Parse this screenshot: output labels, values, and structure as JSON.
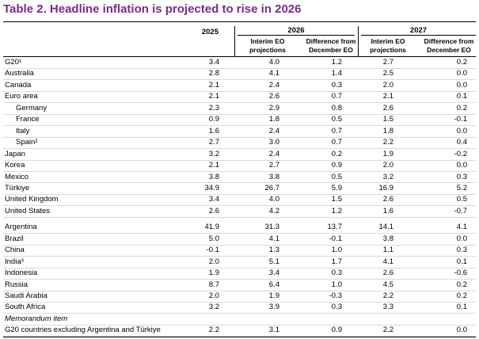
{
  "title": "Table  2. Headline inflation is projected to rise in 2026",
  "header": {
    "years": [
      "2025",
      "2026",
      "2027"
    ],
    "subheaders": [
      "Interim EO projections",
      "Difference from December EO",
      "Interim EO projections",
      "Difference from December EO"
    ]
  },
  "groups": [
    {
      "rows": [
        {
          "label": "G20¹",
          "values": [
            "3.4",
            "4.0",
            "1.2",
            "2.7",
            "0.2"
          ]
        },
        {
          "label": "Australia",
          "values": [
            "2.8",
            "4.1",
            "1.4",
            "2.5",
            "0.0"
          ]
        },
        {
          "label": "Canada",
          "values": [
            "2.1",
            "2.4",
            "0.3",
            "2.0",
            "0.0"
          ]
        },
        {
          "label": "Euro area",
          "values": [
            "2.1",
            "2.6",
            "0.7",
            "2.1",
            "0.1"
          ],
          "members": [
            {
              "label": "Germany",
              "values": [
                "2.3",
                "2.9",
                "0.8",
                "2.6",
                "0.2"
              ]
            },
            {
              "label": "France",
              "values": [
                "0.9",
                "1.8",
                "0.5",
                "1.5",
                "-0.1"
              ]
            },
            {
              "label": "Italy",
              "values": [
                "1.6",
                "2.4",
                "0.7",
                "1.8",
                "0.0"
              ]
            },
            {
              "label": "Spain²",
              "values": [
                "2.7",
                "3.0",
                "0.7",
                "2.2",
                "0.4"
              ]
            }
          ]
        },
        {
          "label": "Japan",
          "values": [
            "3.2",
            "2.4",
            "0.2",
            "1.9",
            "-0.2"
          ]
        },
        {
          "label": "Korea",
          "values": [
            "2.1",
            "2.7",
            "0.9",
            "2.0",
            "0.0"
          ]
        },
        {
          "label": "Mexico",
          "values": [
            "3.8",
            "3.8",
            "0.5",
            "3.2",
            "0.3"
          ]
        },
        {
          "label": "Türkiye",
          "values": [
            "34.9",
            "26.7",
            "5.9",
            "16.9",
            "5.2"
          ]
        },
        {
          "label": "United Kingdom",
          "values": [
            "3.4",
            "4.0",
            "1.5",
            "2.6",
            "0.5"
          ]
        },
        {
          "label": "United States",
          "values": [
            "2.6",
            "4.2",
            "1.2",
            "1.6",
            "-0.7"
          ]
        }
      ]
    },
    {
      "rows": [
        {
          "label": "Argentina",
          "values": [
            "41.9",
            "31.3",
            "13.7",
            "14.1",
            "4.1"
          ]
        },
        {
          "label": "Brazil",
          "values": [
            "5.0",
            "4.1",
            "-0.1",
            "3.8",
            "0.0"
          ]
        },
        {
          "label": "China",
          "values": [
            "-0.1",
            "1.3",
            "1.0",
            "1.1",
            "0.3"
          ]
        },
        {
          "label": "India³",
          "values": [
            "2.0",
            "5.1",
            "1.7",
            "4.1",
            "0.1"
          ]
        },
        {
          "label": "Indonesia",
          "values": [
            "1.9",
            "3.4",
            "0.3",
            "2.6",
            "-0.6"
          ]
        },
        {
          "label": "Russia",
          "values": [
            "8.7",
            "6.4",
            "1.0",
            "4.5",
            "0.2"
          ]
        },
        {
          "label": "Saudi Arabia",
          "values": [
            "2.0",
            "1.9",
            "-0.3",
            "2.2",
            "0.2"
          ]
        },
        {
          "label": "South Africa",
          "values": [
            "3.2",
            "3.9",
            "0.3",
            "3.3",
            "0.1"
          ]
        }
      ]
    }
  ],
  "memorandum": {
    "title": "Memorandum item",
    "row": {
      "label": "G20 countries excluding Argentina and Türkiye",
      "values": [
        "2.2",
        "3.1",
        "0.9",
        "2.2",
        "0.0"
      ]
    }
  }
}
